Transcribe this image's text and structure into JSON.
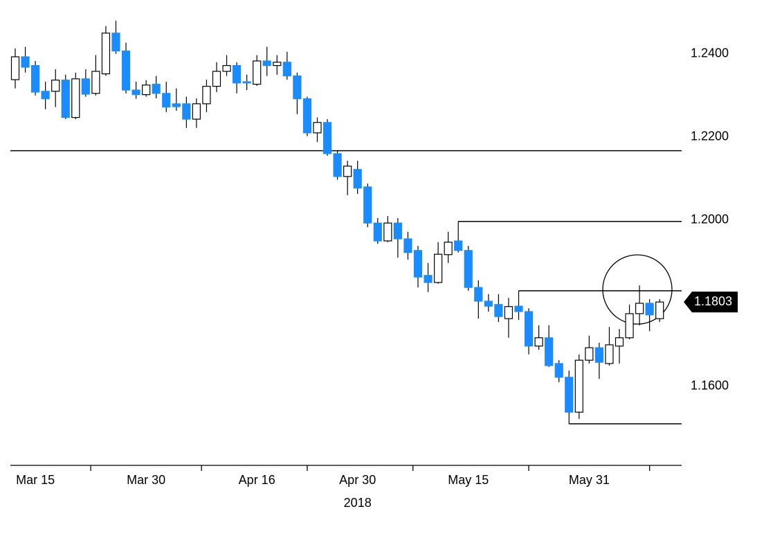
{
  "chart_data": {
    "type": "candlestick",
    "x": [
      "2018-03-13",
      "2018-03-14",
      "2018-03-15",
      "2018-03-16",
      "2018-03-19",
      "2018-03-20",
      "2018-03-21",
      "2018-03-22",
      "2018-03-23",
      "2018-03-26",
      "2018-03-27",
      "2018-03-28",
      "2018-03-29",
      "2018-03-30",
      "2018-04-02",
      "2018-04-03",
      "2018-04-04",
      "2018-04-05",
      "2018-04-06",
      "2018-04-09",
      "2018-04-10",
      "2018-04-11",
      "2018-04-12",
      "2018-04-13",
      "2018-04-16",
      "2018-04-17",
      "2018-04-18",
      "2018-04-19",
      "2018-04-20",
      "2018-04-23",
      "2018-04-24",
      "2018-04-25",
      "2018-04-26",
      "2018-04-27",
      "2018-04-30",
      "2018-05-01",
      "2018-05-02",
      "2018-05-03",
      "2018-05-04",
      "2018-05-07",
      "2018-05-08",
      "2018-05-09",
      "2018-05-10",
      "2018-05-11",
      "2018-05-14",
      "2018-05-15",
      "2018-05-16",
      "2018-05-17",
      "2018-05-18",
      "2018-05-21",
      "2018-05-22",
      "2018-05-23",
      "2018-05-24",
      "2018-05-25",
      "2018-05-28",
      "2018-05-29",
      "2018-05-30",
      "2018-05-31",
      "2018-06-01",
      "2018-06-04",
      "2018-06-05",
      "2018-06-06",
      "2018-06-07",
      "2018-06-08",
      "2018-06-11"
    ],
    "open": [
      1.2338,
      1.2393,
      1.2372,
      1.231,
      1.231,
      1.2337,
      1.2247,
      1.234,
      1.2305,
      1.2352,
      1.245,
      1.2407,
      1.2313,
      1.2302,
      1.2327,
      1.2305,
      1.228,
      1.228,
      1.2243,
      1.228,
      1.2322,
      1.2358,
      1.2372,
      1.2333,
      1.2327,
      1.2383,
      1.2372,
      1.238,
      1.2347,
      1.2292,
      1.221,
      1.2235,
      1.216,
      1.2105,
      1.2122,
      1.208,
      1.1993,
      1.195,
      1.1993,
      1.1955,
      1.1927,
      1.1867,
      1.185,
      1.1917,
      1.195,
      1.1927,
      1.1838,
      1.1805,
      1.1797,
      1.1763,
      1.1793,
      1.178,
      1.1697,
      1.1717,
      1.1655,
      1.1622,
      1.1538,
      1.1663,
      1.1693,
      1.1655,
      1.1697,
      1.1717,
      1.1775,
      1.18,
      1.1763
    ],
    "high": [
      1.2413,
      1.2417,
      1.2383,
      1.2333,
      1.2363,
      1.235,
      1.2355,
      1.2363,
      1.2397,
      1.2467,
      1.248,
      1.2427,
      1.2333,
      1.2337,
      1.2347,
      1.2333,
      1.2317,
      1.2297,
      1.2293,
      1.2338,
      1.238,
      1.2397,
      1.238,
      1.235,
      1.2397,
      1.2417,
      1.2397,
      1.2405,
      1.2355,
      1.2297,
      1.2247,
      1.2243,
      1.2167,
      1.2143,
      1.2143,
      1.2088,
      1.2005,
      1.201,
      1.2005,
      1.1972,
      1.1938,
      1.1897,
      1.1947,
      1.1972,
      1.1997,
      1.1938,
      1.1855,
      1.1822,
      1.1822,
      1.1813,
      1.183,
      1.1788,
      1.1747,
      1.1747,
      1.1663,
      1.1638,
      1.1677,
      1.1722,
      1.1705,
      1.1743,
      1.1738,
      1.1797,
      1.1843,
      1.181,
      1.181
    ],
    "low": [
      1.2317,
      1.2355,
      1.23,
      1.2267,
      1.2272,
      1.2243,
      1.2243,
      1.2297,
      1.23,
      1.2347,
      1.24,
      1.2305,
      1.2292,
      1.2297,
      1.2293,
      1.226,
      1.2263,
      1.2222,
      1.2222,
      1.226,
      1.2308,
      1.2347,
      1.2305,
      1.2313,
      1.2323,
      1.2347,
      1.235,
      1.2338,
      1.2255,
      1.2202,
      1.2188,
      1.2155,
      1.2097,
      1.206,
      1.2063,
      1.1983,
      1.1943,
      1.1947,
      1.191,
      1.1905,
      1.1838,
      1.1827,
      1.1847,
      1.1897,
      1.1922,
      1.183,
      1.1763,
      1.178,
      1.1755,
      1.1717,
      1.176,
      1.1677,
      1.1688,
      1.1647,
      1.161,
      1.151,
      1.1522,
      1.1655,
      1.1618,
      1.165,
      1.1655,
      1.1713,
      1.1747,
      1.1733,
      1.1755
    ],
    "close": [
      1.2393,
      1.2368,
      1.2308,
      1.2292,
      1.2337,
      1.2247,
      1.234,
      1.2303,
      1.2358,
      1.245,
      1.2407,
      1.2313,
      1.2302,
      1.2325,
      1.2305,
      1.2272,
      1.2273,
      1.2243,
      1.228,
      1.2322,
      1.2358,
      1.2372,
      1.233,
      1.233,
      1.2383,
      1.2372,
      1.238,
      1.2347,
      1.2292,
      1.221,
      1.2235,
      1.216,
      1.2105,
      1.213,
      1.2077,
      1.1993,
      1.195,
      1.1993,
      1.1955,
      1.1922,
      1.1863,
      1.185,
      1.1918,
      1.1947,
      1.1927,
      1.1838,
      1.1805,
      1.1793,
      1.1768,
      1.1792,
      1.178,
      1.1697,
      1.1717,
      1.165,
      1.1622,
      1.1538,
      1.1663,
      1.1693,
      1.1658,
      1.17,
      1.1717,
      1.1775,
      1.18,
      1.1772,
      1.1803
    ],
    "up_color": "#ffffff",
    "down_color": "#1a8cff",
    "ylim": [
      1.141,
      1.2513
    ],
    "yticks": [
      {
        "value": 1.16,
        "label": "1.1600"
      },
      {
        "value": 1.18,
        "label": "1.1800"
      },
      {
        "value": 1.2,
        "label": "1.2000"
      },
      {
        "value": 1.22,
        "label": "1.2200"
      },
      {
        "value": 1.24,
        "label": "1.2400"
      }
    ],
    "xticks": [
      {
        "value": "2018-03-15",
        "label": "Mar 15"
      },
      {
        "value": "2018-03-30",
        "label": "Mar 30"
      },
      {
        "value": "2018-04-16",
        "label": "Apr 16"
      },
      {
        "value": "2018-04-30",
        "label": "Apr 30"
      },
      {
        "value": "2018-05-15",
        "label": "May 15"
      },
      {
        "value": "2018-05-31",
        "label": "May 31"
      }
    ],
    "xlabel": "2018",
    "hlines": [
      {
        "value": 1.2167,
        "start": "2018-03-13"
      },
      {
        "value": 1.1997,
        "start": "2018-05-14"
      },
      {
        "value": 1.183,
        "start": "2018-05-22"
      },
      {
        "value": 1.151,
        "start": "2018-05-29"
      }
    ],
    "last_price": 1.1803
  }
}
